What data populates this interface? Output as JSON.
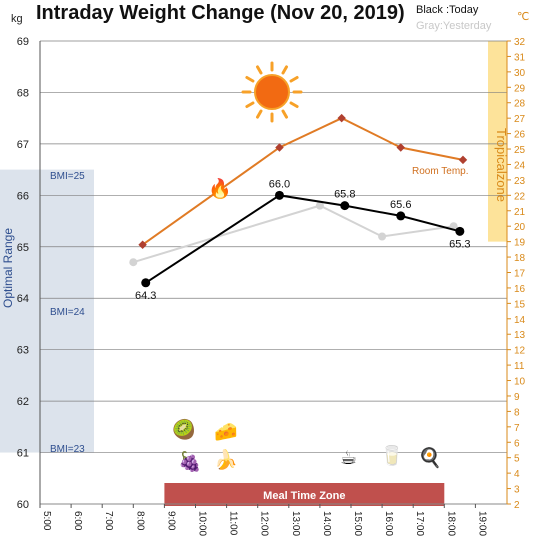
{
  "header": {
    "title": "Intraday Weight Change (Nov 20, 2019)",
    "legend_today": "Black :Today",
    "legend_yesterday": "Gray:Yesterday",
    "unit_left": "kg",
    "unit_right": "℃"
  },
  "zones": {
    "optimal_range": "Optimal Range",
    "bmi_25": "BMI=25",
    "bmi_24": "BMI=24",
    "bmi_23": "BMI=23",
    "tropical_zone": "Tropicalzone",
    "room_temp": "Room Temp.",
    "meal_time_zone": "Meal Time Zone"
  },
  "chart_data": {
    "type": "line",
    "title": "Intraday Weight Change (Nov 20, 2019)",
    "xlabel": "",
    "ylabel": "kg",
    "y2label": "℃",
    "x_ticks": [
      "5:00",
      "6:00",
      "7:00",
      "8:00",
      "9:00",
      "10:00",
      "11:00",
      "12:00",
      "13:00",
      "14:00",
      "15:00",
      "16:00",
      "17:00",
      "18:00",
      "19:00"
    ],
    "xlim": [
      5,
      19.5
    ],
    "ylim": [
      60,
      69
    ],
    "y2lim": [
      2,
      32
    ],
    "series": [
      {
        "name": "Today",
        "axis": "left",
        "color": "#000000",
        "x": [
          8.4,
          12.7,
          14.8,
          16.6,
          18.5
        ],
        "y": [
          64.3,
          66.0,
          65.8,
          65.6,
          65.3
        ],
        "labels": [
          "64.3",
          "66.0",
          "65.8",
          "65.6",
          "65.3"
        ]
      },
      {
        "name": "Yesterday",
        "axis": "left",
        "color": "#d3d3d3",
        "x": [
          8.0,
          14.0,
          16.0,
          18.3
        ],
        "y": [
          64.7,
          65.8,
          65.2,
          65.4
        ]
      },
      {
        "name": "Room Temp.",
        "axis": "right",
        "color": "#e07b25",
        "x": [
          8.3,
          12.7,
          14.7,
          16.6,
          18.6
        ],
        "y": [
          18.8,
          25.1,
          27.0,
          25.1,
          24.3
        ]
      }
    ],
    "bands": [
      {
        "label": "Optimal Range",
        "axis": "left",
        "range": [
          61,
          66.5
        ],
        "color": "#dce3ec"
      },
      {
        "label": "Tropicalzone",
        "axis": "right",
        "range": [
          19,
          32
        ],
        "color": "#fde39a"
      },
      {
        "label": "Meal Time Zone",
        "axis": "x",
        "range": [
          9.0,
          18.0
        ],
        "color": "#c0504d"
      }
    ],
    "reference_lines": [
      {
        "label": "BMI=25",
        "y": 66.5
      },
      {
        "label": "BMI=24",
        "y": 63.8
      },
      {
        "label": "BMI=23",
        "y": 61.0
      }
    ],
    "grid": true
  },
  "icons": [
    {
      "name": "sun-icon",
      "glyph": ""
    },
    {
      "name": "fireplace-icon",
      "glyph": "🔥"
    },
    {
      "name": "kiwi-icon",
      "glyph": "🥝"
    },
    {
      "name": "cheese-icon",
      "glyph": "🧀"
    },
    {
      "name": "grapes-icon",
      "glyph": "🍇"
    },
    {
      "name": "banana-icon",
      "glyph": "🍌"
    },
    {
      "name": "coffee-icon",
      "glyph": "☕"
    },
    {
      "name": "water-glass-icon",
      "glyph": "🥛"
    },
    {
      "name": "egg-icon",
      "glyph": "🍳"
    }
  ]
}
